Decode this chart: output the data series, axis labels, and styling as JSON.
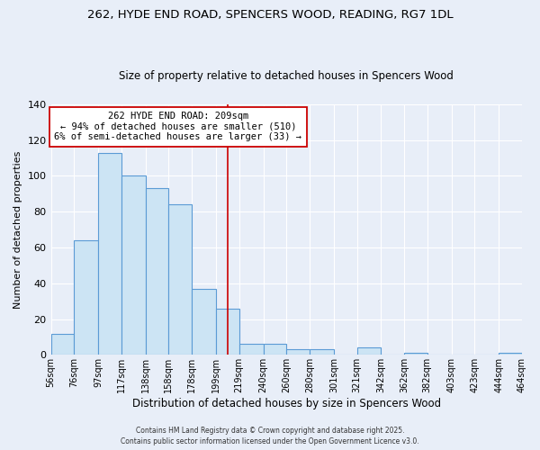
{
  "title": "262, HYDE END ROAD, SPENCERS WOOD, READING, RG7 1DL",
  "subtitle": "Size of property relative to detached houses in Spencers Wood",
  "xlabel": "Distribution of detached houses by size in Spencers Wood",
  "ylabel": "Number of detached properties",
  "bar_color": "#cce4f4",
  "bar_edge_color": "#5b9bd5",
  "background_color": "#e8eef8",
  "grid_color": "#ffffff",
  "bins": [
    56,
    76,
    97,
    117,
    138,
    158,
    178,
    199,
    219,
    240,
    260,
    280,
    301,
    321,
    342,
    362,
    382,
    403,
    423,
    444,
    464
  ],
  "bin_labels": [
    "56sqm",
    "76sqm",
    "97sqm",
    "117sqm",
    "138sqm",
    "158sqm",
    "178sqm",
    "199sqm",
    "219sqm",
    "240sqm",
    "260sqm",
    "280sqm",
    "301sqm",
    "321sqm",
    "342sqm",
    "362sqm",
    "382sqm",
    "403sqm",
    "423sqm",
    "444sqm",
    "464sqm"
  ],
  "counts": [
    12,
    64,
    113,
    100,
    93,
    84,
    37,
    26,
    6,
    6,
    3,
    3,
    0,
    4,
    0,
    1,
    0,
    0,
    0,
    1
  ],
  "ylim": [
    0,
    140
  ],
  "yticks": [
    0,
    20,
    40,
    60,
    80,
    100,
    120,
    140
  ],
  "vline_x": 209,
  "vline_color": "#cc0000",
  "annotation_title": "262 HYDE END ROAD: 209sqm",
  "annotation_line1": "← 94% of detached houses are smaller (510)",
  "annotation_line2": "6% of semi-detached houses are larger (33) →",
  "footer1": "Contains HM Land Registry data © Crown copyright and database right 2025.",
  "footer2": "Contains public sector information licensed under the Open Government Licence v3.0.",
  "title_fontsize": 9.5,
  "subtitle_fontsize": 8.5,
  "xlabel_fontsize": 8.5,
  "ylabel_fontsize": 8,
  "tick_fontsize": 7,
  "annotation_fontsize": 7.5,
  "footer_fontsize": 5.5
}
